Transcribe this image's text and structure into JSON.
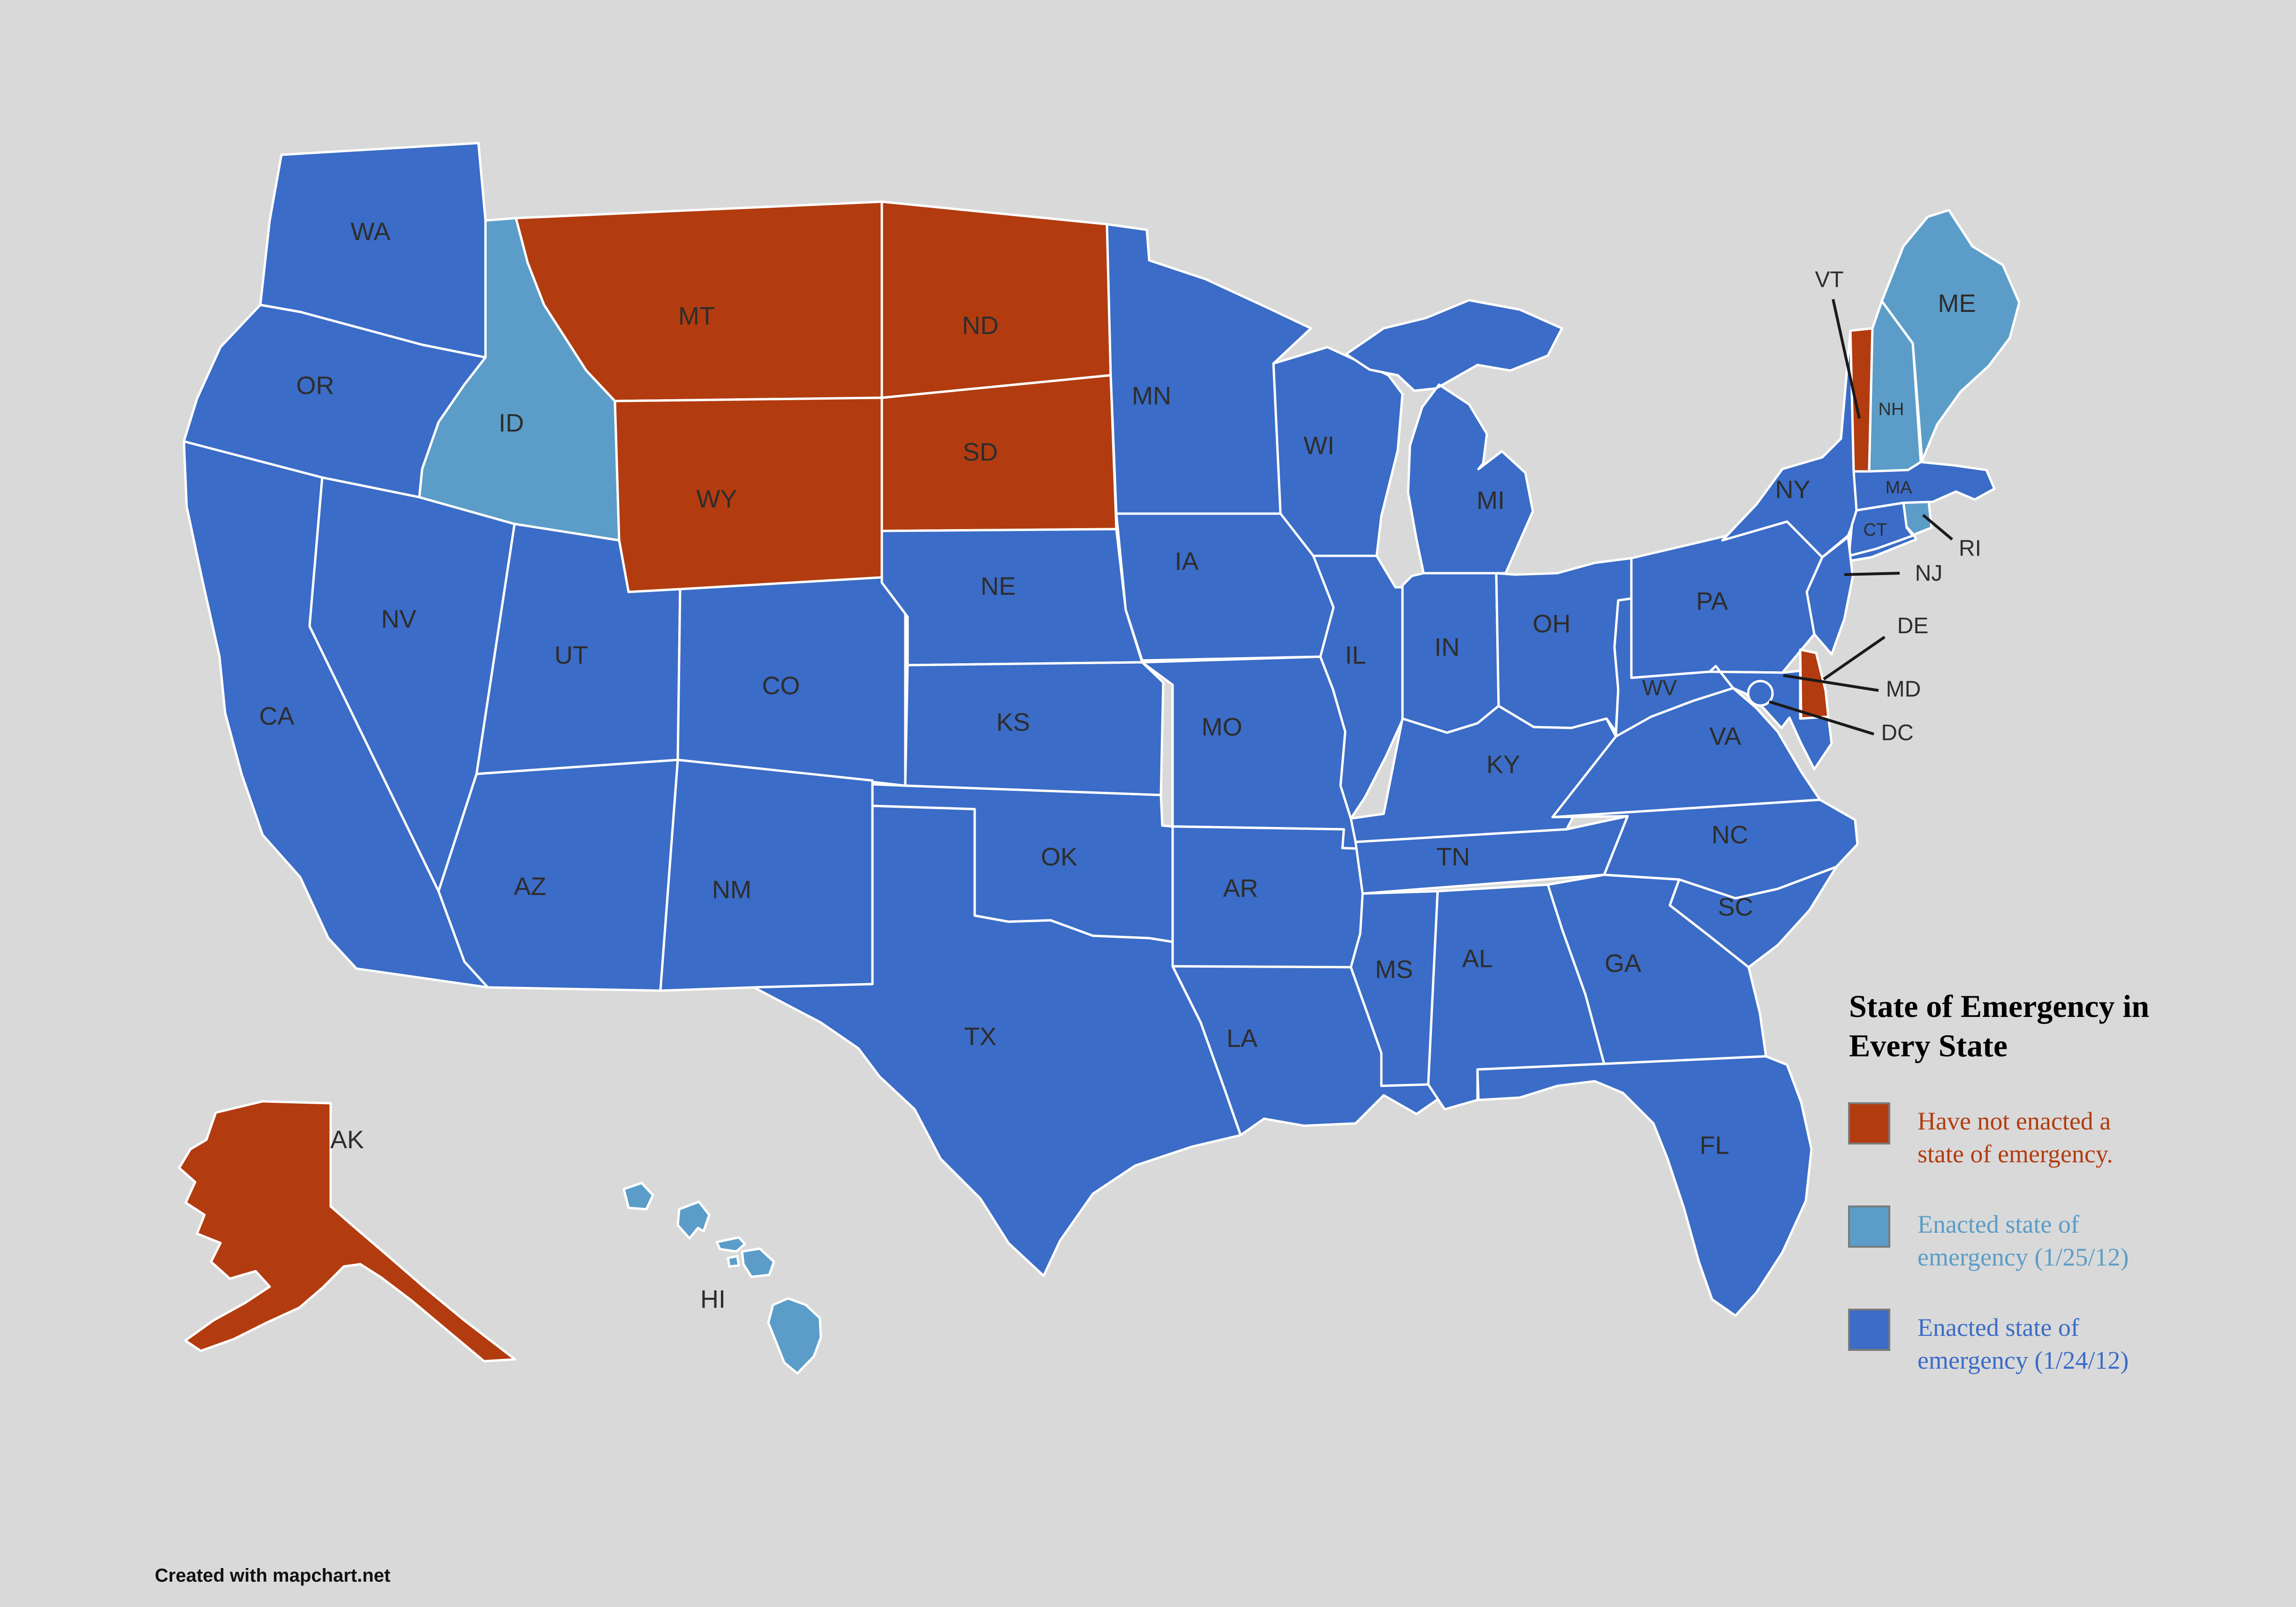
{
  "map": {
    "states": [
      {
        "id": "WA",
        "label": "WA",
        "category": "enacted_0124"
      },
      {
        "id": "OR",
        "label": "OR",
        "category": "enacted_0124"
      },
      {
        "id": "CA",
        "label": "CA",
        "category": "enacted_0124"
      },
      {
        "id": "NV",
        "label": "NV",
        "category": "enacted_0124"
      },
      {
        "id": "ID",
        "label": "ID",
        "category": "enacted_0125"
      },
      {
        "id": "MT",
        "label": "MT",
        "category": "not_enacted"
      },
      {
        "id": "WY",
        "label": "WY",
        "category": "not_enacted"
      },
      {
        "id": "UT",
        "label": "UT",
        "category": "enacted_0124"
      },
      {
        "id": "CO",
        "label": "CO",
        "category": "enacted_0124"
      },
      {
        "id": "AZ",
        "label": "AZ",
        "category": "enacted_0124"
      },
      {
        "id": "NM",
        "label": "NM",
        "category": "enacted_0124"
      },
      {
        "id": "ND",
        "label": "ND",
        "category": "not_enacted"
      },
      {
        "id": "SD",
        "label": "SD",
        "category": "not_enacted"
      },
      {
        "id": "NE",
        "label": "NE",
        "category": "enacted_0124"
      },
      {
        "id": "KS",
        "label": "KS",
        "category": "enacted_0124"
      },
      {
        "id": "OK",
        "label": "OK",
        "category": "enacted_0124"
      },
      {
        "id": "TX",
        "label": "TX",
        "category": "enacted_0124"
      },
      {
        "id": "MN",
        "label": "MN",
        "category": "enacted_0124"
      },
      {
        "id": "IA",
        "label": "IA",
        "category": "enacted_0124"
      },
      {
        "id": "MO",
        "label": "MO",
        "category": "enacted_0124"
      },
      {
        "id": "AR",
        "label": "AR",
        "category": "enacted_0124"
      },
      {
        "id": "LA",
        "label": "LA",
        "category": "enacted_0124"
      },
      {
        "id": "WI",
        "label": "WI",
        "category": "enacted_0124"
      },
      {
        "id": "IL",
        "label": "IL",
        "category": "enacted_0124"
      },
      {
        "id": "MI",
        "label": "MI",
        "category": "enacted_0124"
      },
      {
        "id": "IN",
        "label": "IN",
        "category": "enacted_0124"
      },
      {
        "id": "OH",
        "label": "OH",
        "category": "enacted_0124"
      },
      {
        "id": "KY",
        "label": "KY",
        "category": "enacted_0124"
      },
      {
        "id": "TN",
        "label": "TN",
        "category": "enacted_0124"
      },
      {
        "id": "MS",
        "label": "MS",
        "category": "enacted_0124"
      },
      {
        "id": "AL",
        "label": "AL",
        "category": "enacted_0124"
      },
      {
        "id": "GA",
        "label": "GA",
        "category": "enacted_0124"
      },
      {
        "id": "FL",
        "label": "FL",
        "category": "enacted_0124"
      },
      {
        "id": "SC",
        "label": "SC",
        "category": "enacted_0124"
      },
      {
        "id": "NC",
        "label": "NC",
        "category": "enacted_0124"
      },
      {
        "id": "VA",
        "label": "VA",
        "category": "enacted_0124"
      },
      {
        "id": "WV",
        "label": "WV",
        "category": "enacted_0124"
      },
      {
        "id": "PA",
        "label": "PA",
        "category": "enacted_0124"
      },
      {
        "id": "NY",
        "label": "NY",
        "category": "enacted_0124"
      },
      {
        "id": "VT",
        "label": "VT",
        "category": "not_enacted"
      },
      {
        "id": "NH",
        "label": "NH",
        "category": "enacted_0125"
      },
      {
        "id": "ME",
        "label": "ME",
        "category": "enacted_0125"
      },
      {
        "id": "MA",
        "label": "MA",
        "category": "enacted_0124"
      },
      {
        "id": "RI",
        "label": "RI",
        "category": "enacted_0125"
      },
      {
        "id": "CT",
        "label": "CT",
        "category": "enacted_0124"
      },
      {
        "id": "NJ",
        "label": "NJ",
        "category": "enacted_0124"
      },
      {
        "id": "DE",
        "label": "DE",
        "category": "not_enacted"
      },
      {
        "id": "MD",
        "label": "MD",
        "category": "enacted_0124"
      },
      {
        "id": "DC",
        "label": "DC",
        "category": "enacted_0124"
      },
      {
        "id": "AK",
        "label": "AK",
        "category": "not_enacted"
      },
      {
        "id": "HI",
        "label": "HI",
        "category": "enacted_0125"
      }
    ]
  },
  "legend": {
    "title_lines": [
      "State of Emergency in",
      "Every State"
    ],
    "items": [
      {
        "key": "not_enacted",
        "lines": [
          "Have not enacted a",
          "state of emergency."
        ]
      },
      {
        "key": "enacted_0125",
        "lines": [
          "Enacted state of",
          "emergency (1/25/12)"
        ]
      },
      {
        "key": "enacted_0124",
        "lines": [
          "Enacted state of",
          "emergency (1/24/12)"
        ]
      }
    ]
  },
  "colors": {
    "not_enacted": "#b23c10",
    "enacted_0125": "#5b9dc8",
    "enacted_0124": "#3b6cc7",
    "background": "#d9d9d9",
    "border": "#ffffff",
    "label": "#2d2d2d",
    "callout_line": "#1a1a1a",
    "legend_title": "#000000",
    "swatch_border": "#7a7a7a",
    "footer": "#111111"
  },
  "footer": {
    "credit": "Created with mapchart.net"
  }
}
